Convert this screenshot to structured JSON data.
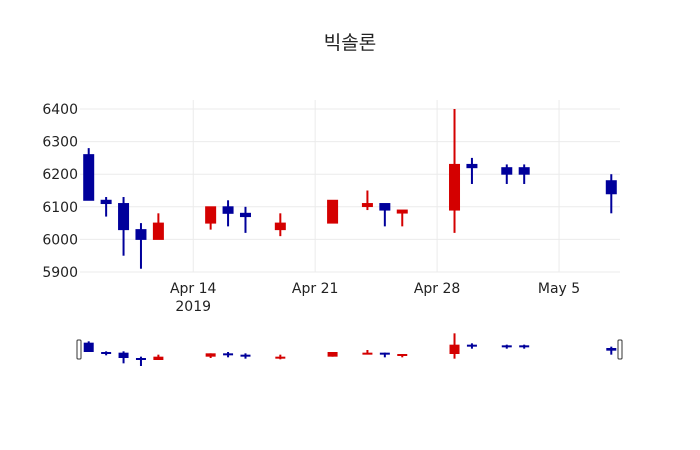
{
  "title": "빅솔론",
  "colors": {
    "increasing": "#d40000",
    "decreasing": "#00009b",
    "grid": "#ebebeb"
  },
  "chart_data": {
    "type": "candlestick",
    "title": "빅솔론",
    "xlabel": "",
    "ylabel": "",
    "ylim": [
      5900,
      6410
    ],
    "yticks": [
      5900,
      6000,
      6100,
      6200,
      6300,
      6400
    ],
    "xticks": [
      {
        "date": "2019-04-14",
        "label": "Apr 14",
        "sublabel": "2019"
      },
      {
        "date": "2019-04-21",
        "label": "Apr 21"
      },
      {
        "date": "2019-04-28",
        "label": "Apr 28"
      },
      {
        "date": "2019-05-05",
        "label": "May 5"
      }
    ],
    "xrange": [
      "2019-04-07T12:00",
      "2019-05-08T12:00"
    ],
    "grid": true,
    "rangeslider": true,
    "candles": [
      {
        "date": "2019-04-08",
        "open": 6260,
        "high": 6280,
        "low": 6120,
        "close": 6120
      },
      {
        "date": "2019-04-09",
        "open": 6120,
        "high": 6130,
        "low": 6070,
        "close": 6110
      },
      {
        "date": "2019-04-10",
        "open": 6110,
        "high": 6130,
        "low": 5950,
        "close": 6030
      },
      {
        "date": "2019-04-11",
        "open": 6030,
        "high": 6050,
        "low": 5910,
        "close": 6000
      },
      {
        "date": "2019-04-12",
        "open": 6000,
        "high": 6080,
        "low": 6000,
        "close": 6050
      },
      {
        "date": "2019-04-15",
        "open": 6050,
        "high": 6100,
        "low": 6030,
        "close": 6100
      },
      {
        "date": "2019-04-16",
        "open": 6100,
        "high": 6120,
        "low": 6040,
        "close": 6080
      },
      {
        "date": "2019-04-17",
        "open": 6080,
        "high": 6100,
        "low": 6020,
        "close": 6070
      },
      {
        "date": "2019-04-19",
        "open": 6030,
        "high": 6080,
        "low": 6010,
        "close": 6050
      },
      {
        "date": "2019-04-22",
        "open": 6050,
        "high": 6120,
        "low": 6050,
        "close": 6120
      },
      {
        "date": "2019-04-24",
        "open": 6110,
        "high": 6150,
        "low": 6090,
        "close": 6110
      },
      {
        "date": "2019-04-25",
        "open": 6110,
        "high": 6110,
        "low": 6040,
        "close": 6090
      },
      {
        "date": "2019-04-26",
        "open": 6090,
        "high": 6090,
        "low": 6040,
        "close": 6090
      },
      {
        "date": "2019-04-29",
        "open": 6090,
        "high": 6400,
        "low": 6020,
        "close": 6230
      },
      {
        "date": "2019-04-30",
        "open": 6230,
        "high": 6250,
        "low": 6170,
        "close": 6220
      },
      {
        "date": "2019-05-02",
        "open": 6220,
        "high": 6230,
        "low": 6170,
        "close": 6200
      },
      {
        "date": "2019-05-03",
        "open": 6220,
        "high": 6230,
        "low": 6170,
        "close": 6200
      },
      {
        "date": "2019-05-08",
        "open": 6180,
        "high": 6200,
        "low": 6080,
        "close": 6140
      }
    ]
  }
}
